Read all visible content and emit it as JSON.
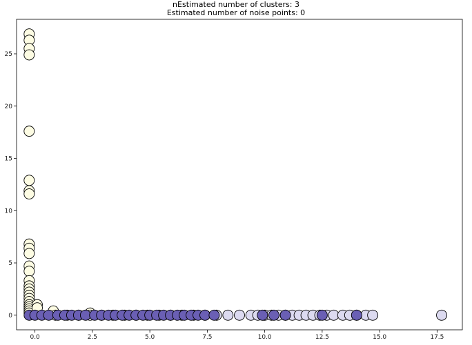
{
  "chart_data": {
    "type": "scatter",
    "title": "nEstimated number of clusters: 3",
    "subtitle": "Estimated number of noise points: 0",
    "xlabel": "",
    "ylabel": "",
    "xlim": [
      -1.1,
      18.3
    ],
    "ylim": [
      -1.4,
      28.3
    ],
    "grid": false,
    "x_ticks": [
      {
        "value": -0.3,
        "label": "0.0"
      },
      {
        "value": 2.2,
        "label": "2.5"
      },
      {
        "value": 4.7,
        "label": "5.0"
      },
      {
        "value": 7.2,
        "label": "7.5"
      },
      {
        "value": 9.7,
        "label": "10.0"
      },
      {
        "value": 12.2,
        "label": "12.5"
      },
      {
        "value": 14.7,
        "label": "15.0"
      },
      {
        "value": 17.2,
        "label": "17.5"
      }
    ],
    "y_ticks": [
      {
        "value": 0,
        "label": "0"
      },
      {
        "value": 5,
        "label": "5"
      },
      {
        "value": 10,
        "label": "10"
      },
      {
        "value": 15,
        "label": "15"
      },
      {
        "value": 20,
        "label": "20"
      },
      {
        "value": 25,
        "label": "25"
      }
    ],
    "series": [
      {
        "color": "#fdfce3",
        "edgecolor": "#000000",
        "points": [
          [
            -0.55,
            26.9
          ],
          [
            -0.55,
            26.3
          ],
          [
            -0.55,
            25.5
          ],
          [
            -0.55,
            24.9
          ],
          [
            -0.55,
            17.6
          ],
          [
            -0.55,
            12.9
          ],
          [
            -0.55,
            11.9
          ],
          [
            -0.55,
            11.6
          ],
          [
            -0.55,
            6.8
          ],
          [
            -0.55,
            6.4
          ],
          [
            -0.55,
            5.9
          ],
          [
            -0.55,
            4.7
          ],
          [
            -0.55,
            4.2
          ],
          [
            -0.55,
            3.3
          ],
          [
            -0.55,
            2.8
          ],
          [
            -0.55,
            2.5
          ],
          [
            -0.55,
            2.2
          ],
          [
            -0.55,
            1.9
          ],
          [
            -0.55,
            1.6
          ],
          [
            -0.55,
            1.3
          ],
          [
            -0.55,
            1.0
          ],
          [
            -0.55,
            0.8
          ],
          [
            -0.55,
            0.6
          ],
          [
            -0.55,
            0.4
          ],
          [
            -0.55,
            0.2
          ],
          [
            -0.2,
            1.0
          ],
          [
            -0.2,
            0.7
          ],
          [
            0.5,
            0.4
          ],
          [
            2.1,
            0.2
          ]
        ]
      },
      {
        "color": "#dcdaf0",
        "edgecolor": "#000000",
        "points": [
          [
            0.6,
            0
          ],
          [
            1.1,
            0
          ],
          [
            1.6,
            0
          ],
          [
            2.1,
            0
          ],
          [
            2.6,
            0
          ],
          [
            3.1,
            0
          ],
          [
            3.6,
            0
          ],
          [
            4.1,
            0
          ],
          [
            4.6,
            0
          ],
          [
            5.1,
            0
          ],
          [
            5.6,
            0
          ],
          [
            6.1,
            0
          ],
          [
            6.6,
            0
          ],
          [
            7.1,
            0
          ],
          [
            7.6,
            0
          ],
          [
            8.1,
            0
          ],
          [
            8.6,
            0
          ],
          [
            9.1,
            0
          ],
          [
            9.4,
            0
          ],
          [
            9.7,
            0
          ],
          [
            10.0,
            0
          ],
          [
            10.3,
            0
          ],
          [
            10.6,
            0
          ],
          [
            10.9,
            0
          ],
          [
            11.2,
            0
          ],
          [
            11.5,
            0
          ],
          [
            11.8,
            0
          ],
          [
            12.1,
            0
          ],
          [
            12.4,
            0
          ],
          [
            12.7,
            0
          ],
          [
            13.1,
            0
          ],
          [
            13.4,
            0
          ],
          [
            13.7,
            0
          ],
          [
            14.1,
            0
          ],
          [
            14.4,
            0
          ],
          [
            17.4,
            0
          ]
        ]
      },
      {
        "color": "#6a5fb4",
        "edgecolor": "#000000",
        "points": [
          [
            -0.55,
            0
          ],
          [
            -0.3,
            0
          ],
          [
            0.0,
            0
          ],
          [
            0.3,
            0
          ],
          [
            0.7,
            0
          ],
          [
            1.0,
            0
          ],
          [
            1.3,
            0
          ],
          [
            1.6,
            0
          ],
          [
            1.9,
            0
          ],
          [
            2.3,
            0
          ],
          [
            2.6,
            0
          ],
          [
            2.9,
            0
          ],
          [
            3.2,
            0
          ],
          [
            3.5,
            0
          ],
          [
            3.8,
            0
          ],
          [
            4.1,
            0
          ],
          [
            4.4,
            0
          ],
          [
            4.7,
            0
          ],
          [
            5.0,
            0
          ],
          [
            5.3,
            0
          ],
          [
            5.6,
            0
          ],
          [
            5.9,
            0
          ],
          [
            6.2,
            0
          ],
          [
            6.5,
            0
          ],
          [
            6.8,
            0
          ],
          [
            7.1,
            0
          ],
          [
            7.5,
            0
          ],
          [
            9.6,
            0
          ],
          [
            10.1,
            0
          ],
          [
            10.6,
            0
          ],
          [
            12.2,
            0
          ],
          [
            13.7,
            0
          ]
        ]
      }
    ]
  }
}
